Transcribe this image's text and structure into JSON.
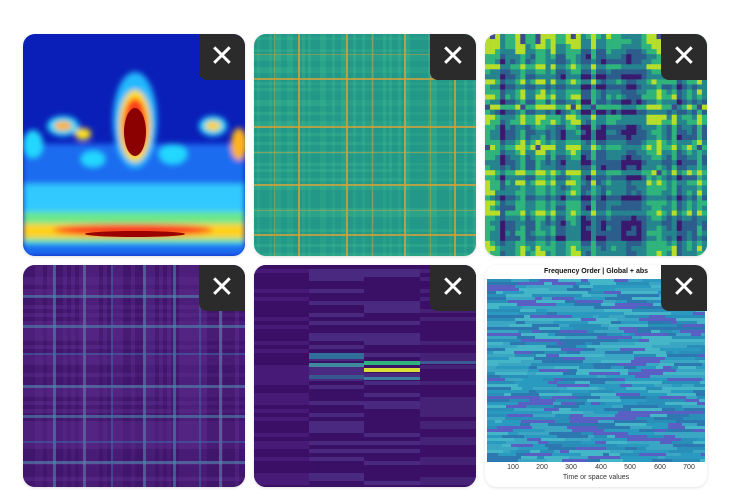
{
  "tiles": [
    {
      "name": "wavelet-scalogram",
      "close_glyph": "✕"
    },
    {
      "name": "teal-plaid-matrix",
      "close_glyph": "✕"
    },
    {
      "name": "viridis-checker-matrix",
      "close_glyph": "✕"
    },
    {
      "name": "purple-plaid-matrix",
      "close_glyph": "✕"
    },
    {
      "name": "dark-bands-matrix",
      "close_glyph": "✕"
    },
    {
      "name": "frequency-order-plot",
      "close_glyph": "✕",
      "title": "Frequency Order | Global + abs",
      "xlabel": "Time or space values",
      "xticks": [
        "100",
        "200",
        "300",
        "400",
        "500",
        "600",
        "700"
      ]
    }
  ],
  "colors": {
    "close_bg": "#2b2b2b",
    "close_fg": "#ffffff",
    "page_bg": "#ffffff"
  }
}
